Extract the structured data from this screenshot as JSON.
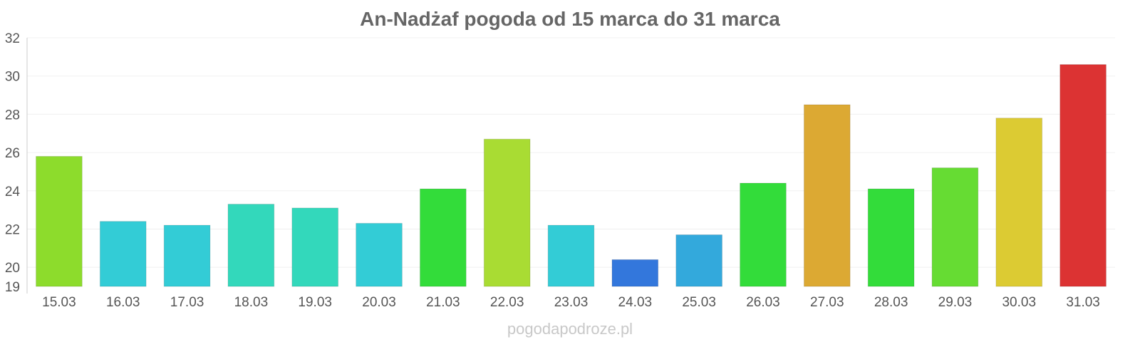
{
  "title": "An-Nadżaf pogoda od 15 marca do 31 marca",
  "watermark": "pogodapodroze.pl",
  "chart_data": {
    "type": "bar",
    "title": "An-Nadżaf pogoda od 15 marca do 31 marca",
    "xlabel": "",
    "ylabel": "",
    "categories": [
      "15.03",
      "16.03",
      "17.03",
      "18.03",
      "19.03",
      "20.03",
      "21.03",
      "22.03",
      "23.03",
      "24.03",
      "25.03",
      "26.03",
      "27.03",
      "28.03",
      "29.03",
      "30.03",
      "31.03"
    ],
    "values": [
      25.8,
      22.4,
      22.2,
      23.3,
      23.1,
      22.3,
      24.1,
      26.7,
      22.2,
      20.4,
      21.7,
      24.4,
      28.5,
      24.1,
      25.2,
      27.8,
      30.6
    ],
    "colors": [
      "#8ddc2c",
      "#33ccd6",
      "#33ccd6",
      "#33d8bb",
      "#33d8bb",
      "#33ccd6",
      "#33dc3a",
      "#a9dc33",
      "#33ccd6",
      "#3377dc",
      "#33a9dc",
      "#33dc3a",
      "#dca933",
      "#33dc3a",
      "#66dc33",
      "#dccb33",
      "#dc3333"
    ],
    "ylim": [
      19,
      32
    ],
    "yticks": [
      19,
      20,
      22,
      24,
      26,
      28,
      30,
      32
    ],
    "grid": true,
    "legend": "none"
  }
}
